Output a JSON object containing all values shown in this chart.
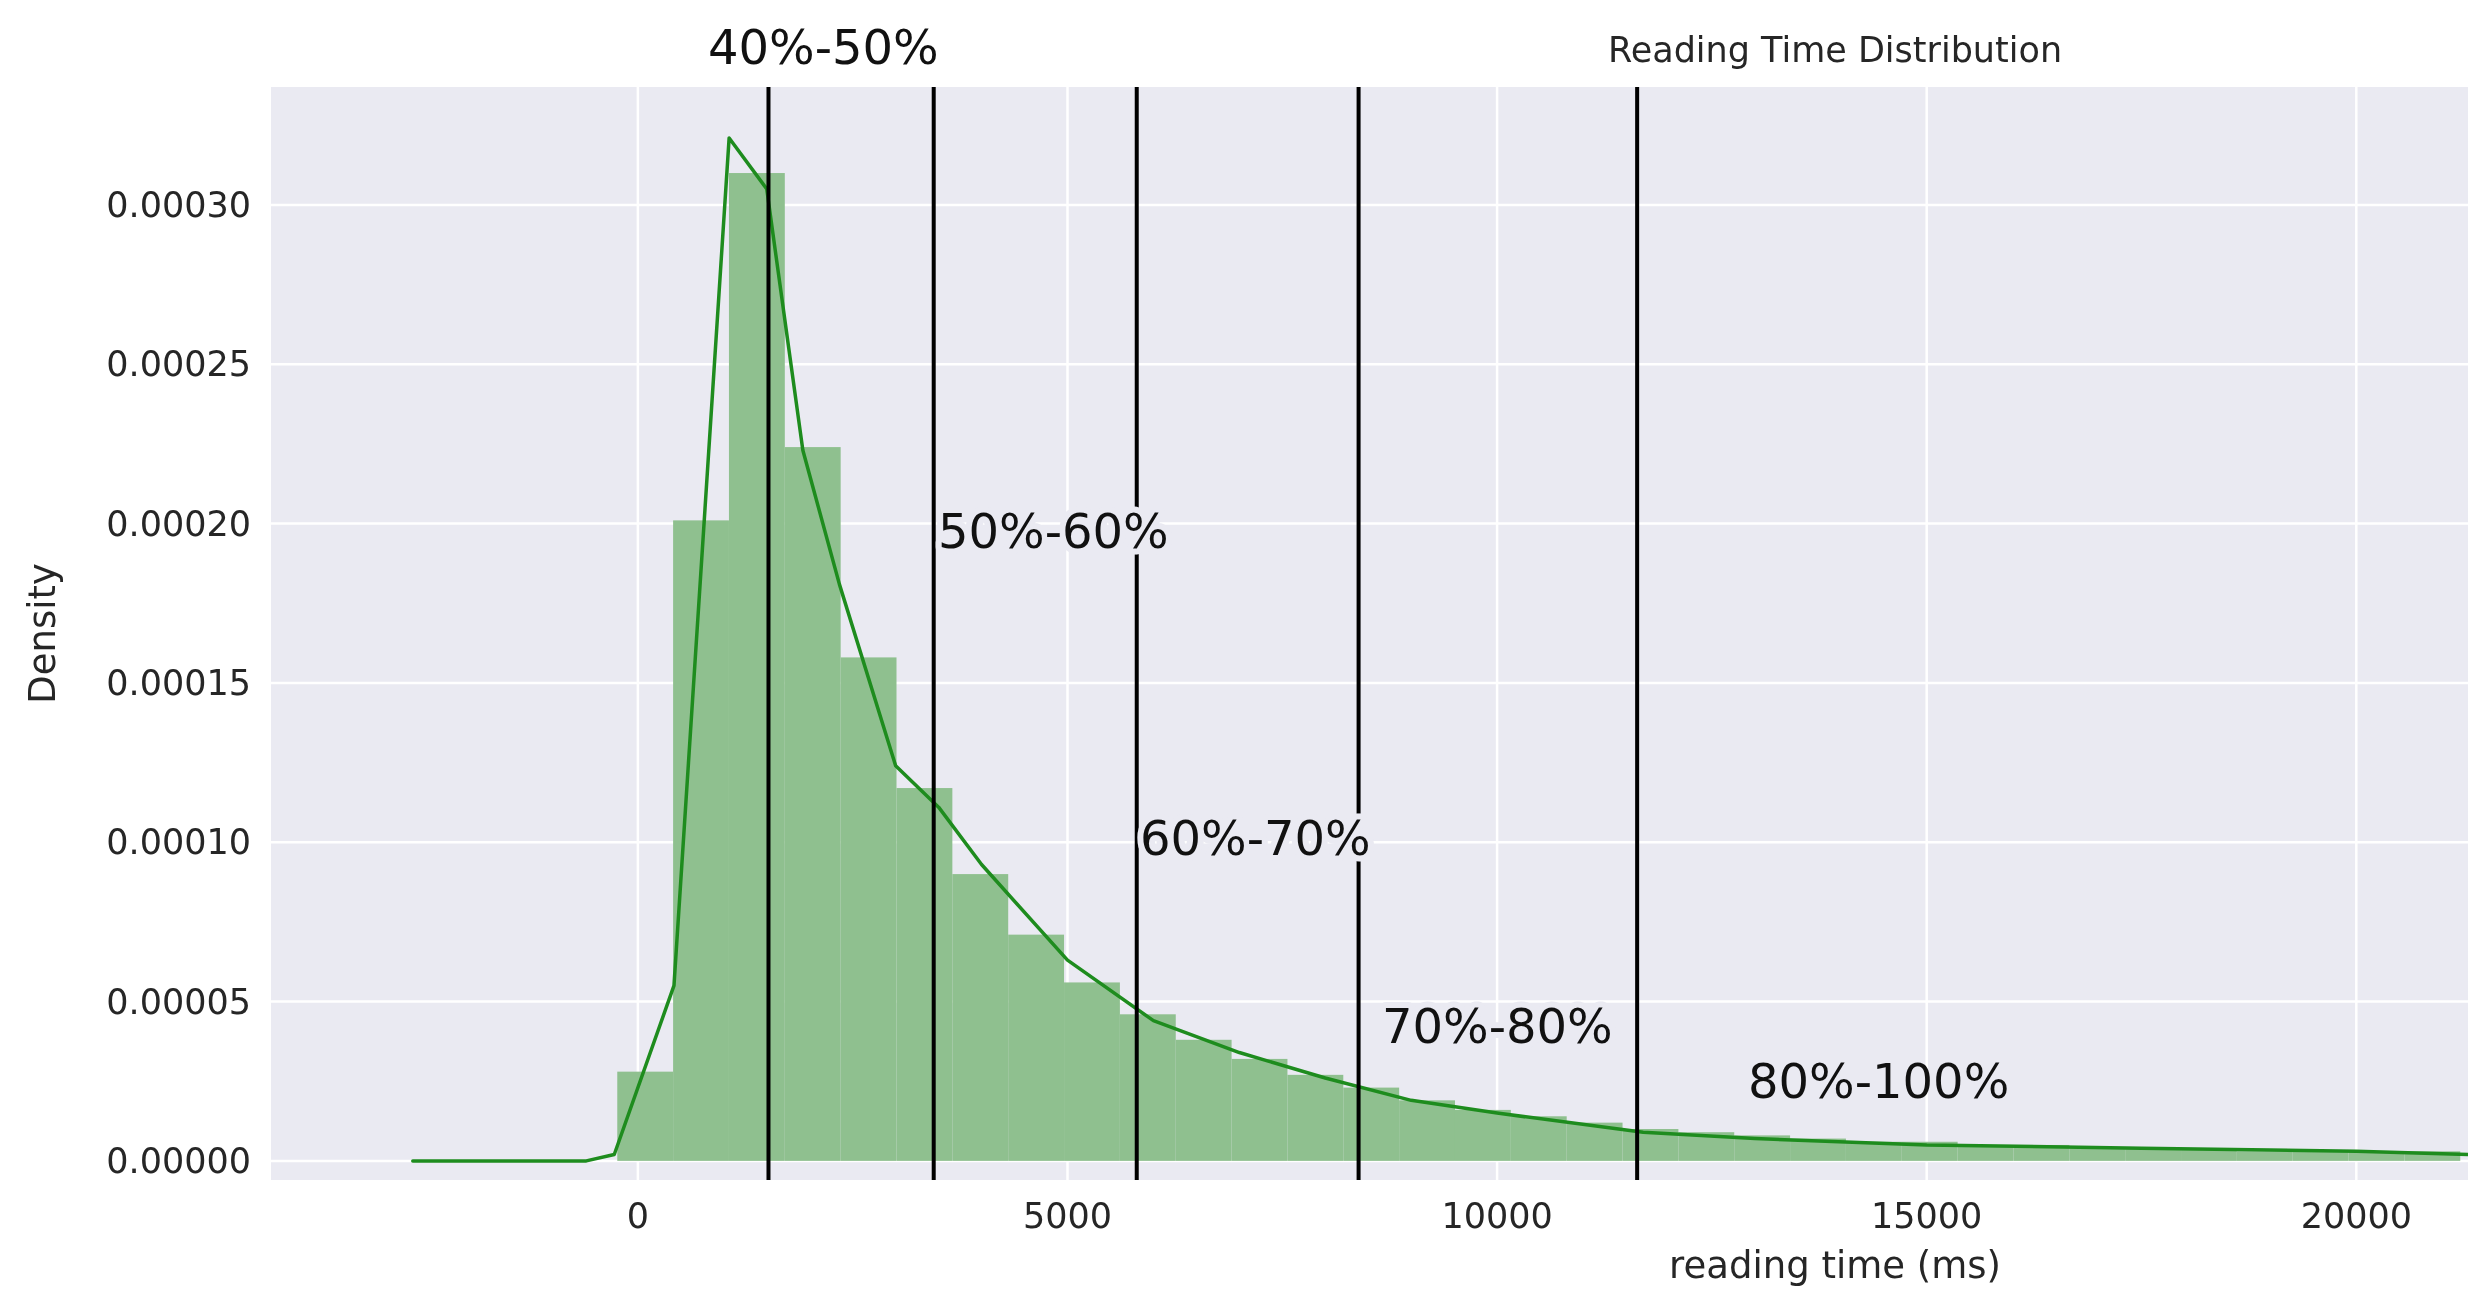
{
  "chart_data": {
    "type": "histogram",
    "title": "Reading Time Distribution",
    "xlabel": "reading time (ms)",
    "ylabel": "Density",
    "xlim": [
      -4270,
      21300
    ],
    "xticks": [
      0,
      5000,
      10000,
      15000,
      20000
    ],
    "ylim": [
      -6e-06,
      0.000337
    ],
    "yticks": [
      {
        "value": 0,
        "label": "0.00000"
      },
      {
        "value": 5e-05,
        "label": "0.00005"
      },
      {
        "value": 0.0001,
        "label": "0.00010"
      },
      {
        "value": 0.00015,
        "label": "0.00015"
      },
      {
        "value": 0.0002,
        "label": "0.00020"
      },
      {
        "value": 0.00025,
        "label": "0.00025"
      },
      {
        "value": 0.0003,
        "label": "0.00030"
      }
    ],
    "grid": true,
    "series": [
      {
        "color": "#8fc08f",
        "bins": [
          -240,
          410,
          1060,
          1710,
          2360,
          3010,
          3660,
          4310,
          4960,
          5610,
          6260,
          6910,
          7560,
          8210,
          8860,
          9510,
          10160,
          10810,
          11460,
          12110,
          12760,
          13410,
          14060,
          14710,
          15360,
          16010,
          16660,
          17310,
          17960,
          18610,
          19260,
          19910,
          20560,
          21210
        ],
        "values": [
          2.8e-05,
          0.000201,
          0.00031,
          0.000224,
          0.000158,
          0.000117,
          9e-05,
          7.1e-05,
          5.6e-05,
          4.6e-05,
          3.8e-05,
          3.2e-05,
          2.7e-05,
          2.3e-05,
          1.9e-05,
          1.6e-05,
          1.4e-05,
          1.2e-05,
          1e-05,
          9e-06,
          8e-06,
          7e-06,
          6e-06,
          6e-06,
          5e-06,
          5e-06,
          4e-06,
          4e-06,
          4e-06,
          3e-06,
          3e-06,
          3e-06,
          3e-06
        ]
      },
      {
        "type": "line",
        "color": "#1e8c1e",
        "x": [
          -2620,
          -600,
          -275,
          420,
          1062,
          1500,
          1920,
          2345,
          3000,
          3500,
          4000,
          5000,
          6000,
          7000,
          8000,
          9000,
          10000,
          11700,
          13000,
          15000,
          17500,
          20000,
          21300
        ],
        "values": [
          0,
          0,
          2e-06,
          5.5e-05,
          0.000321,
          0.000305,
          0.000223,
          0.000181,
          0.000124,
          0.000111,
          9.3e-05,
          6.3e-05,
          4.4e-05,
          3.4e-05,
          2.6e-05,
          1.9e-05,
          1.5e-05,
          9e-06,
          7e-06,
          5e-06,
          4e-06,
          3e-06,
          2e-06
        ]
      }
    ],
    "ref_lines": [
      {
        "axis": "x",
        "value": 1520,
        "color": "#000000"
      },
      {
        "axis": "x",
        "value": 3443,
        "color": "#000000"
      },
      {
        "axis": "x",
        "value": 5806,
        "color": "#000000"
      },
      {
        "axis": "x",
        "value": 8388,
        "color": "#000000"
      },
      {
        "axis": "x",
        "value": 11630,
        "color": "#000000"
      }
    ],
    "annotations": [
      "40%-50%",
      "50%-60%",
      "60%-70%",
      "70%-80%",
      "80%-100%"
    ]
  }
}
